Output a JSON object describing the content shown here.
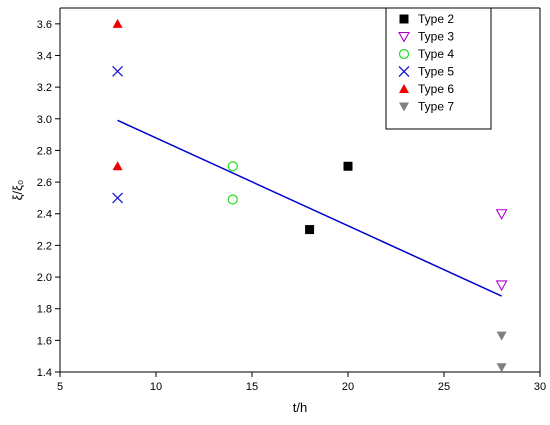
{
  "chart_data": {
    "type": "scatter",
    "xlabel": "t/h",
    "ylabel": "ξ/ξ₀",
    "xlim": [
      5,
      30
    ],
    "ylim": [
      1.4,
      3.7
    ],
    "x_ticks": [
      5,
      10,
      15,
      20,
      25,
      30
    ],
    "y_ticks": [
      1.4,
      1.6,
      1.8,
      2.0,
      2.2,
      2.4,
      2.6,
      2.8,
      3.0,
      3.2,
      3.4,
      3.6
    ],
    "x_tick_labels": [
      "5",
      "10",
      "15",
      "20",
      "25",
      "30"
    ],
    "y_tick_labels": [
      "1.4",
      "1.6",
      "1.8",
      "2.0",
      "2.2",
      "2.4",
      "2.6",
      "2.8",
      "3.0",
      "3.2",
      "3.4",
      "3.6"
    ],
    "grid": false,
    "legend_position": "top-right",
    "series": [
      {
        "name": "Type 2",
        "marker": "square",
        "color": "#000000",
        "points": [
          [
            18,
            2.3
          ],
          [
            20,
            2.7
          ]
        ]
      },
      {
        "name": "Type 3",
        "marker": "triangle-down-open",
        "color": "#b000d0",
        "points": [
          [
            28,
            2.4
          ],
          [
            28,
            1.95
          ]
        ]
      },
      {
        "name": "Type 4",
        "marker": "circle-open",
        "color": "#22dd22",
        "points": [
          [
            14,
            2.7
          ],
          [
            14,
            2.49
          ]
        ]
      },
      {
        "name": "Type 5",
        "marker": "x",
        "color": "#1a1acc",
        "points": [
          [
            8,
            3.3
          ],
          [
            8,
            2.5
          ]
        ]
      },
      {
        "name": "Type 6",
        "marker": "triangle-up",
        "color": "#ee0000",
        "points": [
          [
            8,
            3.6
          ],
          [
            8,
            2.7
          ]
        ]
      },
      {
        "name": "Type 7",
        "marker": "triangle-down",
        "color": "#808080",
        "points": [
          [
            28,
            1.63
          ],
          [
            28,
            1.43
          ]
        ]
      }
    ],
    "fit_line": {
      "color": "#0000cc",
      "points": [
        [
          8,
          2.99
        ],
        [
          28,
          1.88
        ]
      ]
    }
  }
}
